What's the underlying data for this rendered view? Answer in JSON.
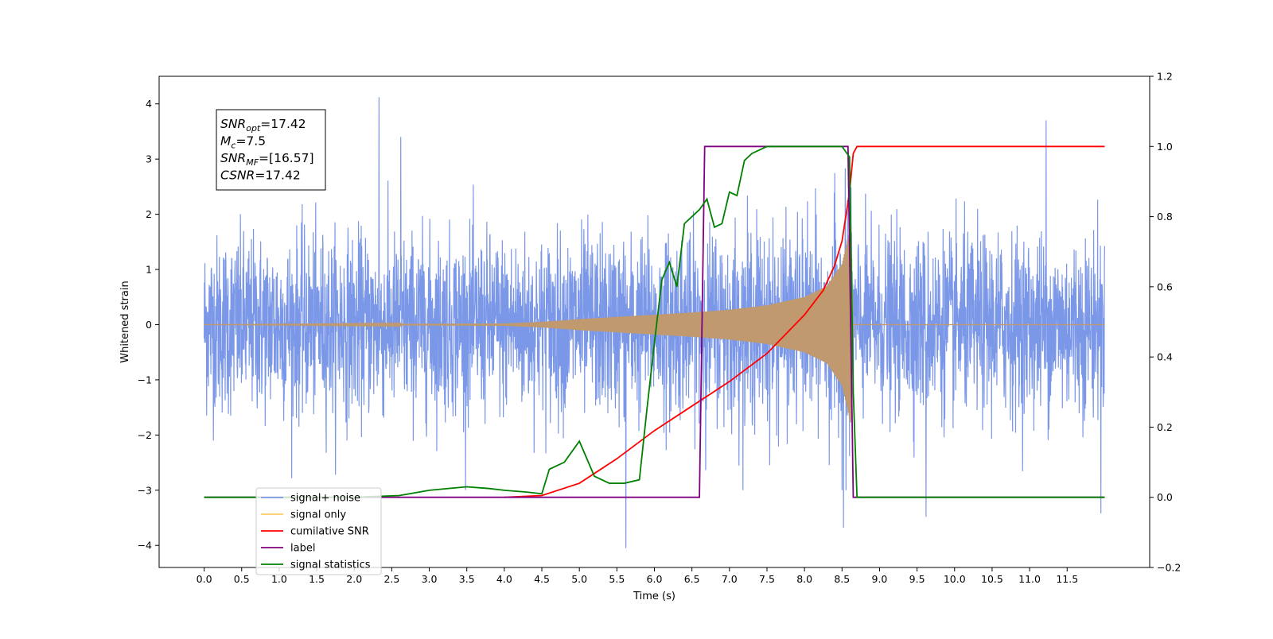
{
  "chart_data": {
    "type": "line",
    "title": "",
    "xlabel": "Time (s)",
    "ylabel": "Whitened strain",
    "y2label": "",
    "xlim": [
      -0.6,
      12.6
    ],
    "ylim": [
      -4.4,
      4.5
    ],
    "y2lim": [
      -0.2,
      1.2
    ],
    "xticks": [
      "0.0",
      "0.5",
      "1.0",
      "1.5",
      "2.0",
      "2.5",
      "3.0",
      "3.5",
      "4.0",
      "4.5",
      "5.0",
      "5.5",
      "6.0",
      "6.5",
      "7.0",
      "7.5",
      "8.0",
      "8.5",
      "9.0",
      "9.5",
      "10.0",
      "10.5",
      "11.0",
      "11.5"
    ],
    "yticks": [
      "4",
      "3",
      "2",
      "1",
      "0",
      "−1",
      "−2",
      "−3",
      "−4"
    ],
    "y2ticks": [
      "1.2",
      "1.0",
      "0.8",
      "0.6",
      "0.4",
      "0.2",
      "0.0",
      "−0.2"
    ],
    "grid": false,
    "legend_position": "lower-left",
    "annotation": {
      "lines": [
        {
          "sym": "SNR",
          "sub": "opt",
          "value": "=17.42"
        },
        {
          "sym": "M",
          "sub": "c",
          "value": "=7.5"
        },
        {
          "sym": "SNR",
          "sub": "MF",
          "value": "=[16.57]"
        },
        {
          "sym": "CSNR",
          "sub": "",
          "value": "=17.42"
        }
      ]
    },
    "series": [
      {
        "name": "signal+ noise",
        "axis": "left",
        "color": "#7b97e8",
        "description_kind": "whitened noise",
        "x_range": [
          0.0,
          12.0
        ],
        "noise_std": 0.8,
        "peaks": [
          [
            2.33,
            4.12
          ],
          [
            2.62,
            3.4
          ],
          [
            11.22,
            3.7
          ],
          [
            5.62,
            -4.05
          ],
          [
            8.52,
            -3.68
          ],
          [
            9.62,
            -3.48
          ],
          [
            11.95,
            -3.42
          ]
        ]
      },
      {
        "name": "signal only",
        "axis": "left",
        "color": "#c0996e",
        "x_range": [
          0.0,
          12.0
        ],
        "merger_time": 8.62,
        "envelope": [
          [
            0.0,
            0.0
          ],
          [
            4.0,
            0.02
          ],
          [
            4.5,
            0.05
          ],
          [
            5.0,
            0.1
          ],
          [
            5.5,
            0.14
          ],
          [
            6.0,
            0.18
          ],
          [
            6.5,
            0.22
          ],
          [
            7.0,
            0.27
          ],
          [
            7.5,
            0.35
          ],
          [
            8.0,
            0.5
          ],
          [
            8.3,
            0.7
          ],
          [
            8.5,
            1.1
          ],
          [
            8.62,
            1.8
          ],
          [
            8.65,
            0.0
          ],
          [
            12.0,
            0.0
          ]
        ]
      },
      {
        "name": "cumilative SNR",
        "axis": "right",
        "color": "#ff0000",
        "x": [
          4.0,
          4.5,
          5.0,
          5.5,
          6.0,
          6.5,
          7.0,
          7.5,
          8.0,
          8.25,
          8.4,
          8.5,
          8.6,
          8.65,
          8.7,
          12.0
        ],
        "y": [
          0.0,
          0.005,
          0.04,
          0.11,
          0.19,
          0.26,
          0.33,
          0.41,
          0.52,
          0.59,
          0.66,
          0.73,
          0.87,
          0.98,
          1.0,
          1.0
        ]
      },
      {
        "name": "label",
        "axis": "right",
        "color": "#800080",
        "x": [
          0.0,
          6.6,
          6.67,
          8.58,
          8.65,
          12.0
        ],
        "y": [
          0.0,
          0.0,
          1.0,
          1.0,
          0.0,
          0.0
        ]
      },
      {
        "name": "signal statistics",
        "axis": "right",
        "color": "#008000",
        "x": [
          0.0,
          2.0,
          2.6,
          3.0,
          3.5,
          3.8,
          4.0,
          4.3,
          4.5,
          4.6,
          4.8,
          5.0,
          5.2,
          5.4,
          5.6,
          5.8,
          5.9,
          6.0,
          6.1,
          6.2,
          6.3,
          6.4,
          6.5,
          6.6,
          6.7,
          6.8,
          6.9,
          7.0,
          7.1,
          7.2,
          7.3,
          7.5,
          7.7,
          8.0,
          8.5,
          8.6,
          8.65,
          8.7,
          12.0
        ],
        "y": [
          0.0,
          0.0,
          0.005,
          0.02,
          0.03,
          0.025,
          0.02,
          0.015,
          0.01,
          0.08,
          0.1,
          0.16,
          0.06,
          0.04,
          0.04,
          0.05,
          0.25,
          0.44,
          0.62,
          0.67,
          0.6,
          0.78,
          0.8,
          0.82,
          0.85,
          0.77,
          0.78,
          0.87,
          0.86,
          0.96,
          0.98,
          1.0,
          1.0,
          1.0,
          1.0,
          0.97,
          0.3,
          0.0,
          0.0
        ]
      }
    ],
    "legend": [
      {
        "label": "signal+ noise",
        "color": "#7b97e8"
      },
      {
        "label": "signal only",
        "color": "#ffcc66"
      },
      {
        "label": "cumilative SNR",
        "color": "#ff0000"
      },
      {
        "label": "label",
        "color": "#800080"
      },
      {
        "label": "signal statistics",
        "color": "#008000"
      }
    ]
  }
}
